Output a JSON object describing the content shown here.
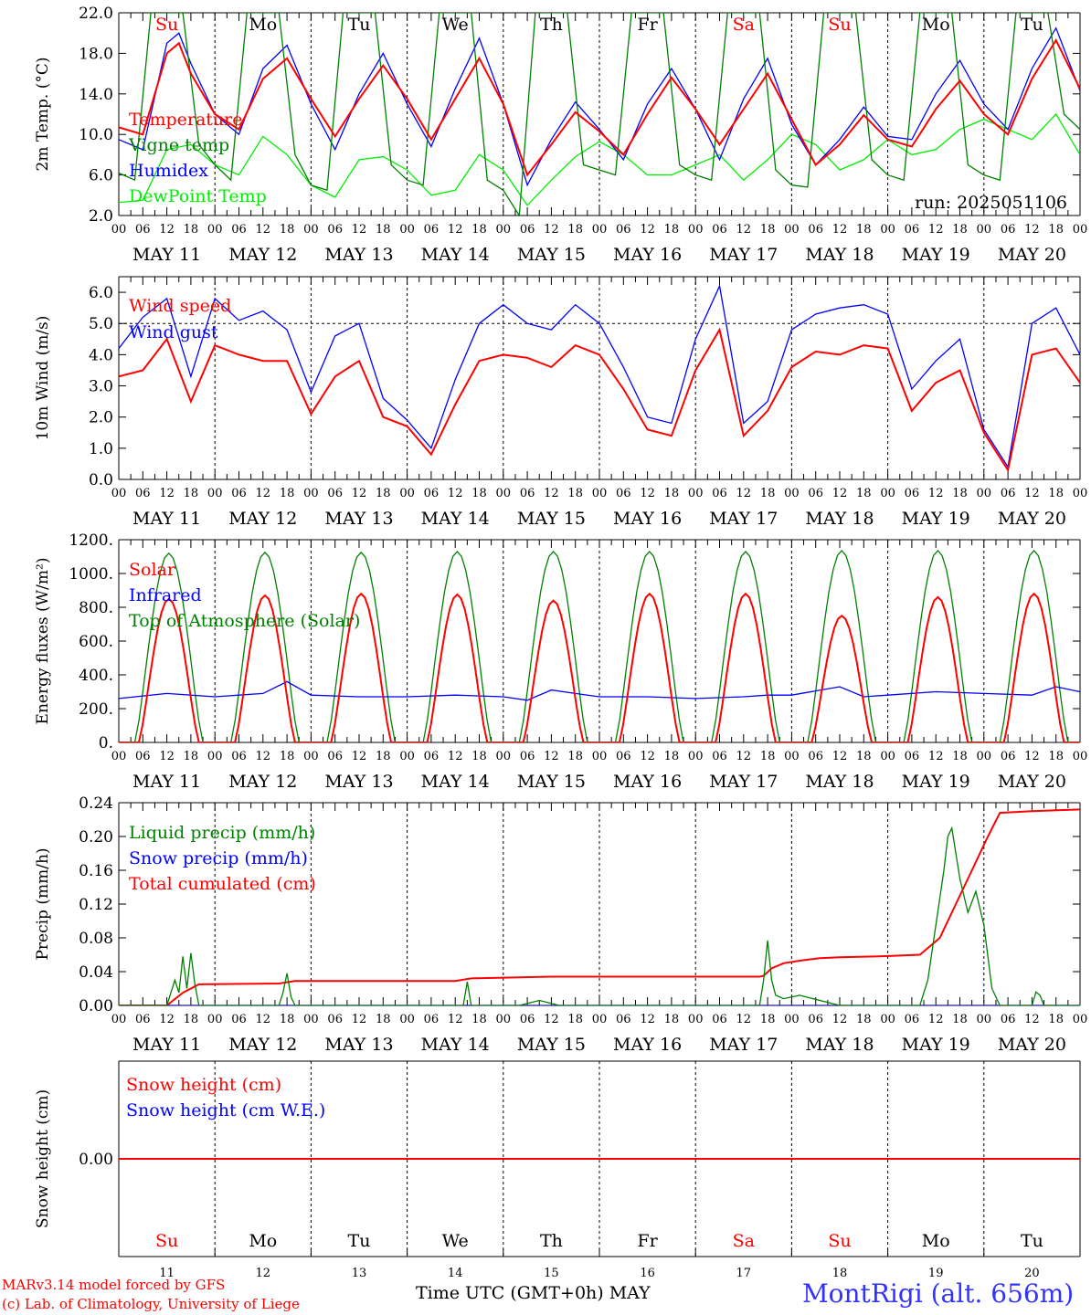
{
  "colors": {
    "red": "#ff0000",
    "dark_green": "#008000",
    "blue": "#0000ff",
    "light_green": "#00ee00",
    "station_blue": "#3333ff",
    "axis": "#000000"
  },
  "run_label": "run: 2025051106",
  "day_tags": [
    "Su",
    "Mo",
    "Tu",
    "We",
    "Th",
    "Fr",
    "Sa",
    "Su",
    "Mo",
    "Tu"
  ],
  "weekend_tags": [
    0,
    6,
    7
  ],
  "date_labels": [
    "MAY 11",
    "MAY 12",
    "MAY 13",
    "MAY 14",
    "MAY 15",
    "MAY 16",
    "MAY 17",
    "MAY 18",
    "MAY 19",
    "MAY 20"
  ],
  "hour_ticks": [
    "00",
    "06",
    "12",
    "18"
  ],
  "hour_end": "00",
  "day_numbers": [
    "11",
    "12",
    "13",
    "14",
    "15",
    "16",
    "17",
    "18",
    "19",
    "20"
  ],
  "footer": {
    "credit1": "MARv3.14 model forced by GFS",
    "credit2": "(c) Lab. of Climatology, University of Liege",
    "xtitle": "Time UTC (GMT+0h) MAY",
    "station": "MontRigi (alt. 656m)"
  },
  "chart_data": [
    {
      "type": "line",
      "ylabel": "2m Temp. (°C)",
      "ylim": [
        2,
        22
      ],
      "yticks": [
        "22.0",
        "18.0",
        "14.0",
        "10.0",
        "6.0",
        "2.0"
      ],
      "x_units": "hours since 00 UTC MAY 11",
      "series": [
        {
          "name": "Temperature",
          "color": "red",
          "x": [
            0,
            6,
            12,
            15,
            18,
            24,
            30,
            36,
            42,
            48,
            54,
            60,
            66,
            72,
            78,
            84,
            90,
            96,
            102,
            108,
            114,
            120,
            126,
            132,
            138,
            144,
            150,
            156,
            162,
            168,
            174,
            180,
            186,
            192,
            198,
            204,
            210,
            216,
            222,
            228,
            234,
            240
          ],
          "y": [
            10.7,
            10.0,
            18.0,
            19.0,
            16.0,
            12.0,
            10.5,
            15.5,
            17.5,
            13.5,
            9.8,
            13.5,
            16.8,
            13.5,
            9.5,
            13.5,
            17.5,
            13.0,
            6.0,
            9.0,
            12.2,
            10.3,
            8.0,
            12.0,
            15.6,
            12.5,
            9.0,
            12.5,
            16.0,
            11.5,
            7.0,
            9.0,
            11.9,
            9.5,
            8.8,
            12.5,
            15.3,
            12.0,
            10.0,
            15.5,
            19.3,
            14.5
          ]
        },
        {
          "name": "Vigne temp",
          "color": "dark_green",
          "x": [
            0,
            4,
            8,
            12,
            16,
            20,
            24,
            28,
            32,
            36,
            40,
            44,
            48,
            52,
            56,
            60,
            64,
            68,
            72,
            76,
            80,
            84,
            88,
            92,
            96,
            100,
            104,
            108,
            112,
            116,
            120,
            124,
            128,
            132,
            136,
            140,
            144,
            148,
            152,
            156,
            160,
            164,
            168,
            172,
            176,
            180,
            184,
            188,
            192,
            196,
            200,
            204,
            208,
            212,
            216,
            220,
            224,
            228,
            232,
            236,
            240
          ],
          "y": [
            6.2,
            5.5,
            22.0,
            22.0,
            22.0,
            9.0,
            7.0,
            5.5,
            22.0,
            22.0,
            22.0,
            8.0,
            5.0,
            4.5,
            22.0,
            22.0,
            22.0,
            7.0,
            5.5,
            5.0,
            22.0,
            22.0,
            22.0,
            5.5,
            4.5,
            2.0,
            22.0,
            22.0,
            22.0,
            7.0,
            6.5,
            6.0,
            22.0,
            22.0,
            22.0,
            7.0,
            6.0,
            5.5,
            22.0,
            22.0,
            22.0,
            6.5,
            5.0,
            4.8,
            22.0,
            22.0,
            22.0,
            7.5,
            6.0,
            5.5,
            22.0,
            22.0,
            22.0,
            7.0,
            6.0,
            5.5,
            22.0,
            22.0,
            22.0,
            12.0,
            10.5
          ]
        },
        {
          "name": "Humidex",
          "color": "blue",
          "x": [
            0,
            6,
            12,
            15,
            18,
            24,
            30,
            36,
            42,
            48,
            54,
            60,
            66,
            72,
            78,
            84,
            90,
            96,
            102,
            108,
            114,
            120,
            126,
            132,
            138,
            144,
            150,
            156,
            162,
            168,
            174,
            180,
            186,
            192,
            198,
            204,
            210,
            216,
            222,
            228,
            234,
            240
          ],
          "y": [
            9.5,
            8.5,
            19.0,
            20.0,
            17.0,
            12.0,
            10.0,
            16.5,
            18.8,
            13.0,
            8.5,
            14.0,
            18.0,
            13.0,
            8.8,
            14.5,
            19.5,
            13.0,
            5.0,
            9.5,
            13.2,
            10.5,
            7.5,
            13.0,
            16.5,
            12.5,
            7.5,
            13.5,
            17.5,
            11.0,
            7.0,
            9.5,
            12.7,
            9.8,
            9.5,
            14.0,
            17.3,
            13.0,
            10.5,
            16.5,
            20.5,
            14.3
          ]
        },
        {
          "name": "DewPoint Temp",
          "color": "light_green",
          "x": [
            0,
            6,
            12,
            18,
            24,
            30,
            36,
            42,
            48,
            54,
            60,
            66,
            72,
            78,
            84,
            90,
            96,
            102,
            108,
            114,
            120,
            126,
            132,
            138,
            144,
            150,
            156,
            162,
            168,
            174,
            180,
            186,
            192,
            198,
            204,
            210,
            216,
            222,
            228,
            234,
            240
          ],
          "y": [
            3.3,
            3.5,
            8.5,
            9.0,
            7.0,
            6.0,
            9.8,
            8.0,
            5.0,
            3.8,
            7.5,
            7.8,
            6.5,
            4.0,
            4.5,
            8.0,
            6.5,
            3.0,
            5.5,
            7.8,
            9.3,
            8.0,
            6.0,
            6.0,
            7.0,
            8.0,
            5.5,
            7.5,
            10.0,
            9.0,
            6.5,
            7.5,
            9.5,
            8.0,
            8.5,
            10.5,
            11.5,
            10.5,
            9.5,
            12.0,
            8.0
          ]
        }
      ]
    },
    {
      "type": "line",
      "ylabel": "10m Wind (m/s)",
      "ylim": [
        0,
        6.5
      ],
      "yticks": [
        "6.0",
        "5.0",
        "4.0",
        "3.0",
        "2.0",
        "1.0",
        "0.0"
      ],
      "x_units": "hours since 00 UTC MAY 11",
      "series": [
        {
          "name": "Wind speed",
          "color": "red",
          "x": [
            0,
            6,
            12,
            18,
            24,
            30,
            36,
            42,
            48,
            54,
            60,
            66,
            72,
            78,
            84,
            90,
            96,
            102,
            108,
            114,
            120,
            126,
            132,
            138,
            144,
            150,
            156,
            162,
            168,
            174,
            180,
            186,
            192,
            198,
            204,
            210,
            216,
            222,
            228,
            234,
            240
          ],
          "y": [
            3.3,
            3.5,
            4.5,
            2.5,
            4.3,
            4.0,
            3.8,
            3.8,
            2.1,
            3.3,
            3.8,
            2.0,
            1.7,
            0.8,
            2.4,
            3.8,
            4.0,
            3.9,
            3.6,
            4.3,
            4.0,
            2.9,
            1.6,
            1.4,
            3.5,
            4.8,
            1.4,
            2.2,
            3.6,
            4.1,
            4.0,
            4.3,
            4.2,
            2.2,
            3.1,
            3.5,
            1.5,
            0.3,
            4.0,
            4.2,
            3.1
          ]
        },
        {
          "name": "Wind gust",
          "color": "blue",
          "x": [
            0,
            6,
            12,
            18,
            24,
            30,
            36,
            42,
            48,
            54,
            60,
            66,
            72,
            78,
            84,
            90,
            96,
            102,
            108,
            114,
            120,
            126,
            132,
            138,
            144,
            150,
            156,
            162,
            168,
            174,
            180,
            186,
            192,
            198,
            204,
            210,
            216,
            222,
            228,
            234,
            240
          ],
          "y": [
            4.2,
            5.2,
            5.8,
            3.3,
            5.8,
            5.1,
            5.4,
            4.8,
            2.8,
            4.6,
            5.0,
            2.6,
            1.9,
            1.0,
            3.2,
            5.0,
            5.6,
            5.0,
            4.8,
            5.6,
            5.0,
            3.6,
            2.0,
            1.8,
            4.5,
            6.2,
            1.8,
            2.5,
            4.8,
            5.3,
            5.5,
            5.6,
            5.3,
            2.9,
            3.8,
            4.5,
            1.6,
            0.4,
            5.0,
            5.5,
            4.0
          ]
        }
      ],
      "reference_line": 5.0
    },
    {
      "type": "line",
      "ylabel": "Energy fluxes (W/m²)",
      "ylim": [
        0,
        1200
      ],
      "yticks": [
        "1200.",
        "1000.",
        "800.",
        "600.",
        "400.",
        "200.",
        "0."
      ],
      "x_units": "hours since 00 UTC MAY 11",
      "series": [
        {
          "name": "Solar",
          "color": "red",
          "peak_x": [
            12.5,
            36.5,
            60.5,
            84.5,
            108.5,
            132.5,
            156.5,
            180.5,
            204.5,
            228.5
          ],
          "peak_y": [
            850,
            870,
            880,
            875,
            840,
            880,
            880,
            750,
            860,
            880
          ],
          "half_width": 7.5
        },
        {
          "name": "Infrared",
          "color": "blue",
          "x": [
            0,
            12,
            24,
            36,
            42,
            48,
            60,
            72,
            84,
            96,
            102,
            108,
            114,
            120,
            132,
            144,
            156,
            162,
            168,
            180,
            186,
            192,
            204,
            216,
            228,
            234,
            240
          ],
          "y": [
            260,
            290,
            270,
            290,
            360,
            280,
            270,
            270,
            280,
            270,
            250,
            310,
            290,
            270,
            270,
            260,
            270,
            280,
            280,
            330,
            270,
            280,
            300,
            290,
            280,
            330,
            300
          ]
        },
        {
          "name": "Top of Atmosphere (Solar)",
          "color": "dark_green",
          "peak_x": [
            12.5,
            36.5,
            60.5,
            84.5,
            108.5,
            132.5,
            156.5,
            180.5,
            204.5,
            228.5
          ],
          "peak_y": [
            1120,
            1125,
            1125,
            1130,
            1130,
            1130,
            1130,
            1135,
            1135,
            1135
          ],
          "half_width": 8.5
        }
      ]
    },
    {
      "type": "line",
      "ylabel": "Precip (mm/h)",
      "ylim": [
        0,
        0.24
      ],
      "yticks": [
        "0.24",
        "0.20",
        "0.16",
        "0.12",
        "0.08",
        "0.04",
        "0.00"
      ],
      "x_units": "hours since 00 UTC MAY 11",
      "series": [
        {
          "name": "Liquid precip (mm/h)",
          "color": "dark_green",
          "x": [
            0,
            12,
            14,
            15,
            16,
            17,
            18,
            19,
            20,
            40,
            41,
            42,
            43,
            44,
            86,
            87,
            88,
            100,
            105,
            110,
            160,
            161,
            162,
            163,
            164,
            166,
            170,
            180,
            200,
            202,
            206,
            207,
            208,
            210,
            212,
            214,
            216,
            218,
            220,
            222,
            224,
            226,
            228,
            229,
            230,
            231,
            232,
            234,
            240
          ],
          "y": [
            0,
            0,
            0.03,
            0.015,
            0.058,
            0.02,
            0.062,
            0.025,
            0.0,
            0.0,
            0.015,
            0.038,
            0.01,
            0.0,
            0.0,
            0.028,
            0.0,
            0.0,
            0.006,
            0.0,
            0.0,
            0.03,
            0.077,
            0.03,
            0.012,
            0.008,
            0.012,
            0.0,
            0.0,
            0.03,
            0.16,
            0.2,
            0.21,
            0.15,
            0.11,
            0.135,
            0.095,
            0.02,
            0.0,
            0.0,
            0.0,
            0.0,
            0.0,
            0.016,
            0.012,
            0.0,
            0.0,
            0.0,
            0.0
          ]
        },
        {
          "name": "Snow precip (mm/h)",
          "color": "blue",
          "x": [
            0,
            240
          ],
          "y": [
            0,
            0
          ]
        },
        {
          "name": "Total cumulated (cm)",
          "color": "red",
          "x": [
            0,
            12,
            16,
            20,
            40,
            44,
            84,
            88,
            108,
            160,
            161,
            163,
            166,
            170,
            175,
            180,
            190,
            200,
            205,
            209,
            213,
            217,
            220,
            228,
            240
          ],
          "y": [
            0,
            0,
            0.015,
            0.025,
            0.026,
            0.029,
            0.029,
            0.032,
            0.034,
            0.034,
            0.035,
            0.044,
            0.05,
            0.053,
            0.056,
            0.057,
            0.058,
            0.06,
            0.08,
            0.12,
            0.16,
            0.2,
            0.228,
            0.23,
            0.232
          ]
        }
      ]
    },
    {
      "type": "line",
      "ylabel": "Snow height (cm)",
      "ylim": [
        -1,
        1
      ],
      "yticks": [
        "0.00"
      ],
      "x_units": "hours since 00 UTC MAY 11",
      "series": [
        {
          "name": "Snow height (cm)",
          "color": "red",
          "x": [
            0,
            240
          ],
          "y": [
            0,
            0
          ]
        },
        {
          "name": "Snow height (cm W.E.)",
          "color": "blue",
          "x": [
            0,
            240
          ],
          "y": [
            0,
            0
          ]
        }
      ]
    }
  ]
}
